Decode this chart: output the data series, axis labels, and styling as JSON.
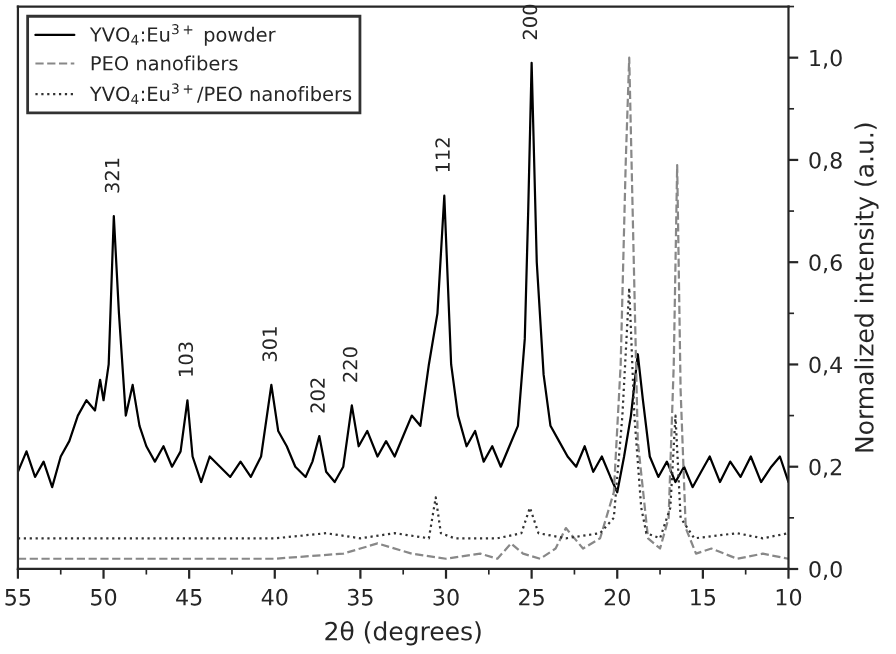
{
  "chart_data": {
    "type": "line",
    "xlabel": "2θ (degrees)",
    "ylabel": "Normalized intensity (a.u.)",
    "xlim": [
      55,
      10
    ],
    "xticks": [
      55,
      50,
      45,
      40,
      35,
      30,
      25,
      20,
      15,
      10
    ],
    "ylim": [
      0,
      1.1
    ],
    "yticks": [
      {
        "value": 0,
        "label": "0,0"
      },
      {
        "value": 0.2,
        "label": "0,2"
      },
      {
        "value": 0.4,
        "label": "0,4"
      },
      {
        "value": 0.6,
        "label": "0,6"
      },
      {
        "value": 0.8,
        "label": "0,8"
      },
      {
        "value": 1.0,
        "label": "1,0"
      }
    ],
    "grid": false,
    "legend": "top left",
    "series": [
      {
        "name": "YVO$_{4}$:Eu$^{3+}$ powder",
        "color": "#000000",
        "line_style": "solid",
        "x": [
          55,
          54.5,
          54,
          53.5,
          53,
          52.5,
          52,
          51.5,
          51,
          50.5,
          50.2,
          50,
          49.7,
          49.4,
          49.1,
          48.7,
          48.3,
          47.9,
          47.5,
          47,
          46.5,
          46,
          45.5,
          45.1,
          44.8,
          44.3,
          43.8,
          43.2,
          42.6,
          42,
          41.4,
          40.8,
          40.2,
          39.8,
          39.3,
          38.8,
          38.2,
          37.8,
          37.4,
          37,
          36.5,
          36,
          35.5,
          35.1,
          34.6,
          34,
          33.5,
          33,
          32.5,
          32,
          31.5,
          31,
          30.5,
          30.1,
          29.7,
          29.3,
          28.8,
          28.3,
          27.8,
          27.3,
          26.8,
          26.3,
          25.8,
          25.4,
          25.2,
          25.0,
          24.7,
          24.3,
          23.9,
          23.4,
          22.9,
          22.4,
          21.9,
          21.4,
          20.9,
          20.4,
          20.0,
          19.6,
          19.2,
          18.8,
          18.5,
          18.1,
          17.6,
          17.1,
          16.6,
          16.1,
          15.6,
          15.1,
          14.6,
          14.0,
          13.4,
          12.8,
          12.2,
          11.6,
          11.0,
          10.5,
          10
        ],
        "values": [
          0.19,
          0.23,
          0.18,
          0.21,
          0.16,
          0.22,
          0.25,
          0.3,
          0.33,
          0.31,
          0.37,
          0.33,
          0.4,
          0.69,
          0.5,
          0.3,
          0.36,
          0.28,
          0.24,
          0.21,
          0.24,
          0.2,
          0.23,
          0.33,
          0.22,
          0.17,
          0.22,
          0.2,
          0.18,
          0.21,
          0.18,
          0.22,
          0.36,
          0.27,
          0.24,
          0.2,
          0.18,
          0.21,
          0.26,
          0.19,
          0.17,
          0.2,
          0.32,
          0.24,
          0.27,
          0.22,
          0.25,
          0.22,
          0.26,
          0.3,
          0.28,
          0.4,
          0.5,
          0.73,
          0.4,
          0.3,
          0.24,
          0.27,
          0.21,
          0.24,
          0.2,
          0.24,
          0.28,
          0.45,
          0.7,
          0.99,
          0.6,
          0.38,
          0.28,
          0.25,
          0.22,
          0.2,
          0.24,
          0.19,
          0.22,
          0.18,
          0.15,
          0.22,
          0.3,
          0.42,
          0.33,
          0.22,
          0.18,
          0.21,
          0.17,
          0.2,
          0.16,
          0.19,
          0.22,
          0.17,
          0.21,
          0.18,
          0.22,
          0.17,
          0.2,
          0.22,
          0.17
        ]
      },
      {
        "name": "PEO nanofibers",
        "color": "#888888",
        "line_style": "dashed",
        "x": [
          55,
          50,
          45,
          40,
          36,
          34,
          32,
          30,
          28,
          27,
          26.2,
          25.5,
          24.5,
          23.6,
          23,
          22,
          21,
          20.2,
          19.8,
          19.5,
          19.3,
          19.1,
          18.8,
          18.2,
          17.5,
          17,
          16.7,
          16.5,
          16.3,
          16,
          15.4,
          14.5,
          13,
          11.5,
          10
        ],
        "values": [
          0.02,
          0.02,
          0.02,
          0.02,
          0.03,
          0.05,
          0.03,
          0.02,
          0.03,
          0.02,
          0.05,
          0.03,
          0.02,
          0.04,
          0.08,
          0.04,
          0.06,
          0.15,
          0.4,
          0.8,
          1.0,
          0.7,
          0.25,
          0.06,
          0.04,
          0.1,
          0.4,
          0.79,
          0.35,
          0.08,
          0.03,
          0.04,
          0.02,
          0.03,
          0.02
        ]
      },
      {
        "name": "YVO$_{4}$:Eu$^{3+}$/PEO nanofibers",
        "color": "#333333",
        "line_style": "dotted",
        "x": [
          55,
          50,
          45,
          40,
          37,
          35,
          33,
          31,
          30.6,
          30.3,
          29.5,
          27,
          25.6,
          25.1,
          24.6,
          23,
          21,
          20.2,
          19.7,
          19.3,
          19.0,
          18.6,
          18.3,
          17.5,
          16.9,
          16.6,
          16.3,
          15.5,
          13,
          11.5,
          10
        ],
        "values": [
          0.06,
          0.06,
          0.06,
          0.06,
          0.07,
          0.06,
          0.07,
          0.06,
          0.14,
          0.07,
          0.06,
          0.06,
          0.07,
          0.12,
          0.07,
          0.06,
          0.07,
          0.1,
          0.3,
          0.55,
          0.3,
          0.12,
          0.07,
          0.06,
          0.12,
          0.3,
          0.1,
          0.06,
          0.07,
          0.06,
          0.07
        ]
      }
    ],
    "annotations": [
      {
        "text": "321",
        "x": 49.4,
        "y": 0.69
      },
      {
        "text": "103",
        "x": 45.1,
        "y": 0.33
      },
      {
        "text": "301",
        "x": 40.2,
        "y": 0.36
      },
      {
        "text": "202",
        "x": 37.4,
        "y": 0.26
      },
      {
        "text": "220",
        "x": 35.5,
        "y": 0.32
      },
      {
        "text": "112",
        "x": 30.1,
        "y": 0.73
      },
      {
        "text": "200",
        "x": 25.0,
        "y": 0.99
      }
    ]
  }
}
